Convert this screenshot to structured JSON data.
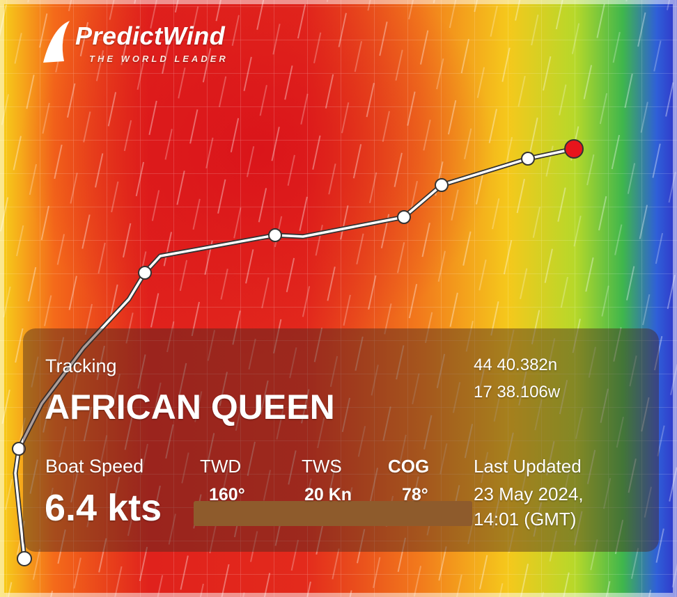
{
  "logo": {
    "name": "PredictWind",
    "tagline": "THE WORLD LEADER"
  },
  "panel": {
    "label": "Tracking",
    "boat_name": "AFRICAN QUEEN",
    "position": {
      "latitude": "44 40.382n",
      "longitude": "17 38.106w"
    },
    "stats": [
      {
        "label": "Boat Speed",
        "value": "6.4 kts"
      },
      {
        "label": "TWD",
        "value": "160°"
      },
      {
        "label": "TWS",
        "value": "20 Kn"
      },
      {
        "label": "COG",
        "value": "78°"
      }
    ],
    "last_updated": {
      "label": "Last Updated",
      "date": "23 May 2024,",
      "time": "14:01 (GMT)"
    }
  }
}
